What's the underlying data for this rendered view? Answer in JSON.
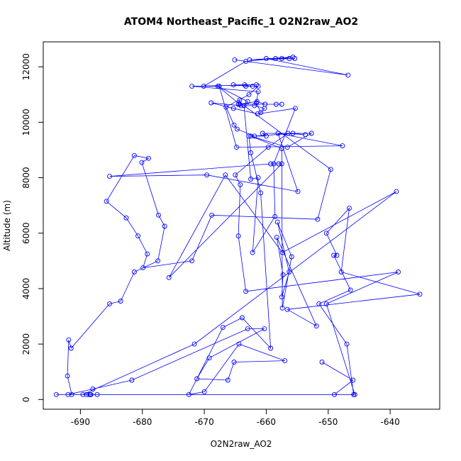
{
  "chart_data": {
    "type": "line",
    "title": "ATOM4 Northeast_Pacific_1 O2N2raw_AO2",
    "xlabel": "O2N2raw_AO2",
    "ylabel": "Altitude (m)",
    "xlim": [
      -696,
      -632
    ],
    "ylim": [
      -350,
      12900
    ],
    "xticks": [
      -690,
      -680,
      -670,
      -660,
      -650,
      -640
    ],
    "yticks": [
      0,
      2000,
      4000,
      6000,
      8000,
      10000,
      12000
    ],
    "grid": false,
    "legend": "none",
    "color": "#0000ff",
    "series": [
      {
        "points": [
          [
            -651.0,
            1350
          ],
          [
            -646.0,
            700
          ],
          [
            -649.0,
            180
          ],
          [
            -645.9,
            180
          ],
          [
            -647.0,
            2000
          ],
          [
            -651.5,
            3450
          ],
          [
            -646.4,
            3950
          ],
          [
            -649.1,
            5200
          ],
          [
            -648.6,
            5200
          ],
          [
            -650.3,
            6000
          ],
          [
            -646.6,
            6900
          ],
          [
            -647.9,
            4600
          ],
          [
            -635.2,
            3800
          ],
          [
            -656.6,
            3250
          ],
          [
            -651.9,
            2650
          ],
          [
            -658.3,
            5850
          ],
          [
            -657.3,
            4500
          ],
          [
            -657.5,
            3700
          ],
          [
            -656.3,
            4600
          ],
          [
            -658.2,
            6400
          ],
          [
            -655.9,
            5150
          ],
          [
            -657.4,
            3300
          ],
          [
            -657.5,
            9050
          ],
          [
            -662.5,
            9500
          ],
          [
            -656.6,
            9100
          ],
          [
            -652.7,
            9600
          ],
          [
            -660.6,
            9600
          ],
          [
            -660.0,
            9500
          ],
          [
            -662.8,
            9500
          ],
          [
            -662.5,
            8900
          ],
          [
            -660.9,
            7450
          ],
          [
            -659.3,
            1850
          ],
          [
            -663.9,
            2950
          ],
          [
            -667.0,
            2600
          ],
          [
            -672.5,
            180
          ],
          [
            -670.0,
            280
          ],
          [
            -664.4,
            2000
          ],
          [
            -657.0,
            1400
          ],
          [
            -665.2,
            1350
          ],
          [
            -666.2,
            700
          ],
          [
            -671.2,
            750
          ],
          [
            -669.2,
            1500
          ],
          [
            -660.3,
            2550
          ],
          [
            -663.0,
            2550
          ],
          [
            -681.7,
            700
          ],
          [
            -688.0,
            380
          ],
          [
            -692.0,
            180
          ],
          [
            -688.6,
            180
          ],
          [
            -687.3,
            180
          ],
          [
            -645.7,
            180
          ],
          [
            -650.3,
            3450
          ],
          [
            -638.7,
            4600
          ],
          [
            -663.3,
            3900
          ],
          [
            -664.5,
            5900
          ],
          [
            -664.2,
            7750
          ],
          [
            -665.0,
            8100
          ],
          [
            -659.7,
            9100
          ],
          [
            -656.5,
            9600
          ],
          [
            -653.7,
            9550
          ],
          [
            -655.7,
            9600
          ],
          [
            -661.9,
            9500
          ],
          [
            -664.7,
            9750
          ],
          [
            -665.2,
            9900
          ],
          [
            -666.5,
            10550
          ],
          [
            -662.8,
            11000
          ],
          [
            -661.3,
            11300
          ],
          [
            -663.3,
            11300
          ],
          [
            -662.2,
            11300
          ],
          [
            -665.3,
            11350
          ],
          [
            -663.5,
            11350
          ],
          [
            -661.6,
            11350
          ],
          [
            -672.0,
            11300
          ],
          [
            -661.3,
            11100
          ],
          [
            -661.6,
            10700
          ],
          [
            -660.9,
            10350
          ],
          [
            -660.3,
            10500
          ],
          [
            -661.9,
            10600
          ],
          [
            -663.6,
            10600
          ],
          [
            -663.0,
            10750
          ],
          [
            -667.8,
            11300
          ],
          [
            -664.3,
            10650
          ],
          [
            -658.4,
            10650
          ],
          [
            -657.5,
            10650
          ],
          [
            -660.2,
            10650
          ],
          [
            -661.5,
            10750
          ],
          [
            -664.5,
            10650
          ],
          [
            -664.3,
            10800
          ],
          [
            -664.1,
            10600
          ],
          [
            -668.9,
            10700
          ],
          [
            -665.3,
            10500
          ],
          [
            -661.4,
            10300
          ],
          [
            -655.3,
            10500
          ],
          [
            -658.8,
            8500
          ],
          [
            -658.6,
            6600
          ],
          [
            -662.2,
            5300
          ],
          [
            -661.3,
            8000
          ],
          [
            -662.5,
            7950
          ],
          [
            -663.6,
            10600
          ],
          [
            -649.6,
            8300
          ],
          [
            -651.7,
            6500
          ],
          [
            -668.8,
            6650
          ],
          [
            -672.0,
            5000
          ],
          [
            -679.9,
            4750
          ],
          [
            -679.2,
            5250
          ],
          [
            -680.7,
            5900
          ],
          [
            -682.6,
            6550
          ],
          [
            -685.8,
            7150
          ],
          [
            -681.3,
            8800
          ],
          [
            -679.0,
            8700
          ],
          [
            -680.1,
            8550
          ],
          [
            -677.4,
            6650
          ],
          [
            -676.4,
            6250
          ],
          [
            -677.5,
            5000
          ],
          [
            -681.3,
            4600
          ],
          [
            -683.5,
            3550
          ],
          [
            -685.3,
            3450
          ],
          [
            -691.5,
            1850
          ],
          [
            -691.9,
            2150
          ],
          [
            -692.1,
            850
          ],
          [
            -691.4,
            180
          ],
          [
            -689.0,
            180
          ],
          [
            -688.4,
            180
          ],
          [
            -688.3,
            180
          ],
          [
            -693.9,
            180
          ],
          [
            -689.6,
            180
          ],
          [
            -671.6,
            2000
          ],
          [
            -639.0,
            7500
          ],
          [
            -657.4,
            5300
          ],
          [
            -666.6,
            8100
          ],
          [
            -675.7,
            4400
          ],
          [
            -657.5,
            8500
          ],
          [
            -658.0,
            8500
          ],
          [
            -659.3,
            8500
          ],
          [
            -685.3,
            8050
          ],
          [
            -669.6,
            8100
          ],
          [
            -654.9,
            7500
          ],
          [
            -658.1,
            9600
          ],
          [
            -647.7,
            9150
          ],
          [
            -664.8,
            9100
          ],
          [
            -667.6,
            11300
          ],
          [
            -670.1,
            11300
          ],
          [
            -663.3,
            12200
          ],
          [
            -658.5,
            12300
          ],
          [
            -656.3,
            12300
          ],
          [
            -655.4,
            12300
          ],
          [
            -662.7,
            12250
          ],
          [
            -655.7,
            12350
          ],
          [
            -657.5,
            12300
          ],
          [
            -660.0,
            12300
          ],
          [
            -646.8,
            11700
          ],
          [
            -665.1,
            12250
          ]
        ]
      }
    ]
  }
}
